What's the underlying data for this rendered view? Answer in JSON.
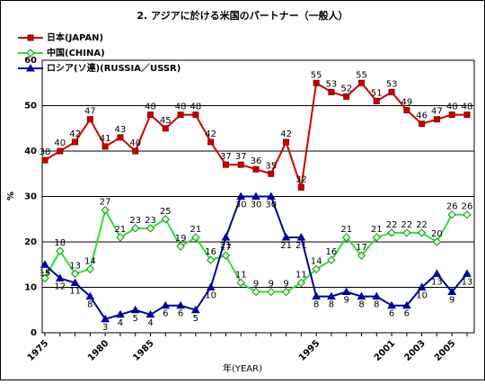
{
  "chart_data": {
    "type": "line",
    "title": "2. アジアに於ける米国のパートナー（一般人）",
    "xlabel": "年(YEAR)",
    "ylabel": "%",
    "categories": [
      "1975",
      null,
      null,
      null,
      "1980",
      null,
      null,
      "1985",
      null,
      null,
      null,
      null,
      null,
      null,
      null,
      null,
      null,
      null,
      "1995",
      null,
      null,
      null,
      null,
      "2001",
      null,
      "2003",
      null,
      "2005",
      null
    ],
    "ylim": [
      0,
      60
    ],
    "yticks": [
      0,
      10,
      20,
      30,
      40,
      50,
      60
    ],
    "grid": true,
    "legend": "top-left",
    "series": [
      {
        "name": "日本(JAPAN)",
        "color": "#cc0000",
        "marker": "square",
        "values": [
          38,
          40,
          42,
          47,
          41,
          43,
          40,
          48,
          45,
          48,
          48,
          42,
          37,
          37,
          36,
          35,
          42,
          32,
          55,
          53,
          52,
          55,
          51,
          53,
          49,
          46,
          47,
          48,
          48
        ]
      },
      {
        "name": "中国(CHINA)",
        "color": "#33dd33",
        "marker": "diamond",
        "values": [
          12,
          18,
          13,
          14,
          27,
          21,
          23,
          23,
          25,
          19,
          21,
          16,
          17,
          11,
          9,
          9,
          9,
          11,
          14,
          16,
          21,
          17,
          21,
          22,
          22,
          22,
          20,
          26,
          26
        ]
      },
      {
        "name": "ロシア(ソ連)(RUSSIA／USSR)",
        "color": "#000099",
        "marker": "triangle",
        "values": [
          15,
          12,
          11,
          8,
          3,
          4,
          5,
          4,
          6,
          6,
          5,
          10,
          21,
          30,
          30,
          30,
          21,
          21,
          8,
          8,
          9,
          8,
          8,
          6,
          6,
          10,
          13,
          9,
          13
        ]
      }
    ]
  }
}
